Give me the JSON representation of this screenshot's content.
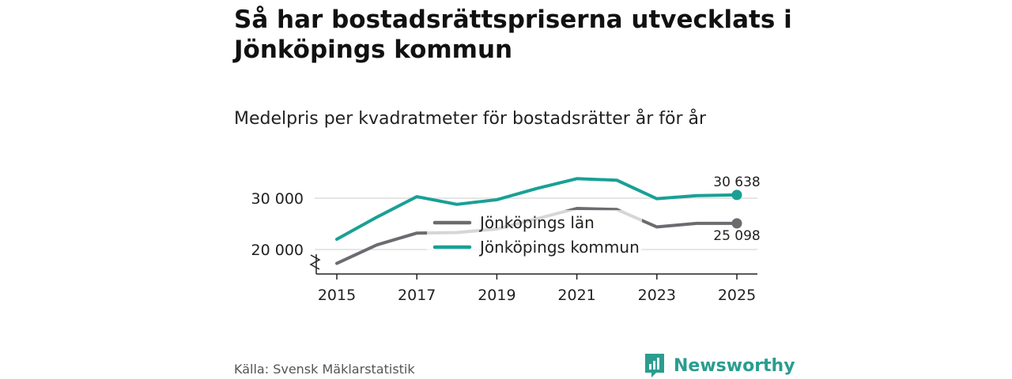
{
  "title": "Så har bostadsrättspriserna utvecklats i Jönköpings kommun",
  "subtitle": "Medelpris per kvadratmeter för bostadsrätter år för år",
  "source": "Källa: Svensk Mäklarstatistik",
  "brand": "Newsworthy",
  "colors": {
    "kommun": "#19a095",
    "lan": "#6b6b70",
    "grid": "#dddddd",
    "axis": "#222222"
  },
  "chart_data": {
    "type": "line",
    "title": "Så har bostadsrättspriserna utvecklats i Jönköpings kommun",
    "subtitle": "Medelpris per kvadratmeter för bostadsrätter år för år",
    "x": [
      2015,
      2016,
      2017,
      2018,
      2019,
      2020,
      2021,
      2022,
      2023,
      2024,
      2025
    ],
    "xticks": [
      2015,
      2017,
      2019,
      2021,
      2023,
      2025
    ],
    "xtick_labels": [
      "2015",
      "2017",
      "2019",
      "2021",
      "2023",
      "2025"
    ],
    "yticks": [
      20000,
      30000
    ],
    "ytick_labels": [
      "20 000",
      "30 000"
    ],
    "ylim": [
      15000,
      34000
    ],
    "axis_break": true,
    "legend_position": "center",
    "series": [
      {
        "name": "Jönköpings län",
        "key": "lan",
        "values": [
          17300,
          20900,
          23200,
          23300,
          24000,
          26000,
          28000,
          27800,
          24400,
          25100,
          25098
        ],
        "end_label": "25 098"
      },
      {
        "name": "Jönköpings kommun",
        "key": "kommun",
        "values": [
          22000,
          26300,
          30300,
          28800,
          29700,
          31900,
          33800,
          33500,
          29900,
          30500,
          30638
        ],
        "end_label": "30 638"
      }
    ]
  }
}
